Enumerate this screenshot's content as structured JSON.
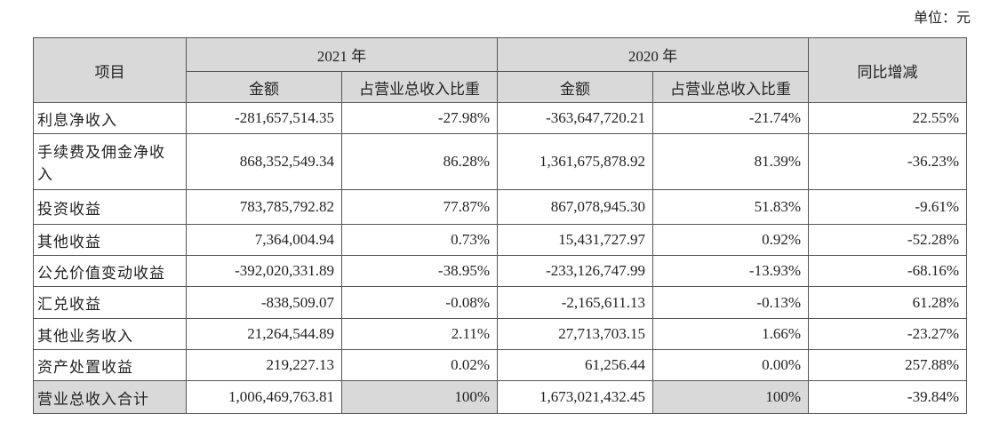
{
  "unit": "单位：元",
  "table": {
    "header": {
      "item": "项目",
      "year_2021": "2021 年",
      "year_2020": "2020 年",
      "yoy": "同比增减",
      "sub": [
        "金额",
        "占营业总收入比重",
        "金额",
        "占营业总收入比重"
      ]
    },
    "rows": [
      [
        "利息净收入",
        "-281,657,514.35",
        "-27.98%",
        "-363,647,720.21",
        "-21.74%",
        "22.55%"
      ],
      [
        "手续费及佣金净收入",
        "868,352,549.34",
        "86.28%",
        "1,361,675,878.92",
        "81.39%",
        "-36.23%"
      ],
      [
        "投资收益",
        "783,785,792.82",
        "77.87%",
        "867,078,945.30",
        "51.83%",
        "-9.61%"
      ],
      [
        "其他收益",
        "7,364,004.94",
        "0.73%",
        "15,431,727.97",
        "0.92%",
        "-52.28%"
      ],
      [
        "公允价值变动收益",
        "-392,020,331.89",
        "-38.95%",
        "-233,126,747.99",
        "-13.93%",
        "-68.16%"
      ],
      [
        "汇兑收益",
        "-838,509.07",
        "-0.08%",
        "-2,165,611.13",
        "-0.13%",
        "61.28%"
      ],
      [
        "其他业务收入",
        "21,264,544.89",
        "2.11%",
        "27,713,703.15",
        "1.66%",
        "-23.27%"
      ],
      [
        "资产处置收益",
        "219,227.13",
        "0.02%",
        "61,256.44",
        "0.00%",
        "257.88%"
      ],
      [
        "营业总收入合计",
        "1,006,469,763.81",
        "100%",
        "1,673,021,432.45",
        "100%",
        "-39.84%"
      ]
    ]
  }
}
